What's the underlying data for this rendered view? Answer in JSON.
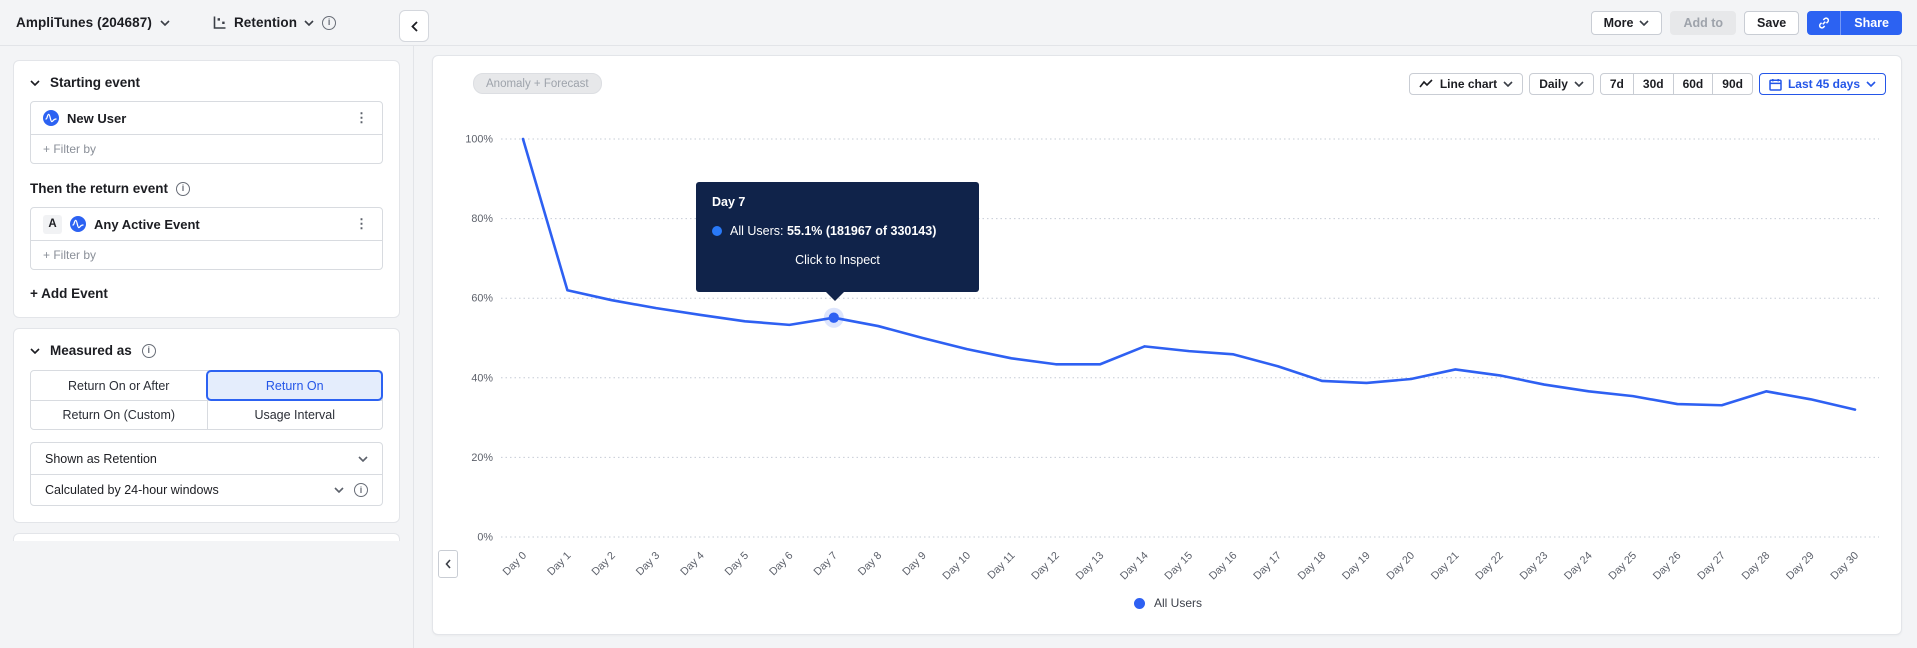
{
  "icons": {
    "kebab": "⋮",
    "info": "i"
  },
  "colors": {
    "accent": "#2c62f2",
    "line": "#2e60f2",
    "tooltip_bg": "#10234a",
    "selected_fill": "#e4edfc",
    "selected_text": "#2456e8"
  },
  "header": {
    "project_label": "AmpliTunes (204687)",
    "chart_name": "Retention",
    "more": "More",
    "add_to": "Add to",
    "save": "Save",
    "share": "Share"
  },
  "panel": {
    "starting_event": {
      "title": "Starting event",
      "event": "New User",
      "filter_label": "+ Filter by"
    },
    "return_event": {
      "title": "Then the return event",
      "badge": "A",
      "event": "Any Active Event",
      "filter_label": "+ Filter by"
    },
    "add_event_label": "+ Add Event",
    "measured_as": {
      "title": "Measured as",
      "options": [
        "Return On or After",
        "Return On",
        "Return On (Custom)",
        "Usage Interval"
      ],
      "selected": "Return On"
    },
    "shown_as": "Shown as Retention",
    "calculated_by": "Calculated by 24-hour windows"
  },
  "toolbar": {
    "anomaly_forecast": "Anomaly + Forecast",
    "chart_type": "Line chart",
    "granularity": "Daily",
    "quick_ranges": [
      "7d",
      "30d",
      "60d",
      "90d"
    ],
    "date_range": "Last 45 days"
  },
  "chart_data": {
    "type": "line",
    "title": "",
    "xlabel": "",
    "ylabel": "",
    "categories": [
      "Day 0",
      "Day 1",
      "Day 2",
      "Day 3",
      "Day 4",
      "Day 5",
      "Day 6",
      "Day 7",
      "Day 8",
      "Day 9",
      "Day 10",
      "Day 11",
      "Day 12",
      "Day 13",
      "Day 14",
      "Day 15",
      "Day 16",
      "Day 17",
      "Day 18",
      "Day 19",
      "Day 20",
      "Day 21",
      "Day 22",
      "Day 23",
      "Day 24",
      "Day 25",
      "Day 26",
      "Day 27",
      "Day 28",
      "Day 29",
      "Day 30"
    ],
    "series": [
      {
        "name": "All Users",
        "color": "#2e60f2",
        "values": [
          100,
          62,
          59.5,
          57.5,
          55.8,
          54.2,
          53.3,
          55.1,
          53,
          50,
          47.2,
          44.9,
          43.4,
          43.4,
          47.9,
          46.7,
          45.9,
          42.9,
          39.2,
          38.7,
          39.7,
          42.1,
          40.6,
          38.3,
          36.6,
          35.4,
          33.4,
          33.1,
          36.6,
          34.6,
          32
        ]
      }
    ],
    "ylim": [
      0,
      100
    ],
    "y_ticks": [
      100,
      80,
      60,
      40,
      20,
      0
    ],
    "y_tick_labels": [
      "100%",
      "80%",
      "60%",
      "40%",
      "20%",
      "0%"
    ],
    "grid": "horizontal-dotted",
    "legend_position": "bottom-center",
    "highlight_index": 7,
    "tooltip": {
      "title": "Day 7",
      "series": "All Users",
      "value_pct": 55.1,
      "numerator": 181967,
      "denominator": 330143,
      "value_text": "55.1% (181967 of 330143)",
      "action": "Click to Inspect"
    }
  },
  "legend": {
    "label": "All Users"
  }
}
